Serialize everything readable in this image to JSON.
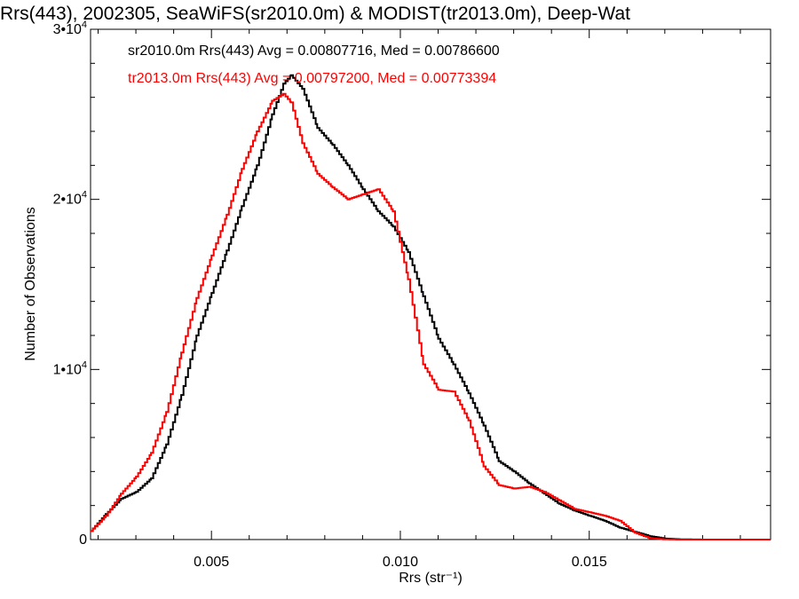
{
  "chart_data": {
    "type": "line",
    "title": "Rrs(443), 2002305, SeaWiFS(sr2010.0m) & MODIST(tr2013.0m), Deep-Wat",
    "xlabel": "Rrs (str⁻¹)",
    "ylabel": "Number of Observations",
    "xlim": [
      0.0018,
      0.0198
    ],
    "ylim": [
      0,
      30000
    ],
    "x_ticks": [
      0.005,
      0.01,
      0.015
    ],
    "x_tick_labels": [
      "0.005",
      "0.010",
      "0.015"
    ],
    "y_ticks": [
      0,
      10000,
      20000,
      30000
    ],
    "y_tick_labels": [
      {
        "mantissa": "0",
        "exp": ""
      },
      {
        "mantissa": "1•10",
        "exp": "4"
      },
      {
        "mantissa": "2•10",
        "exp": "4"
      },
      {
        "mantissa": "3•10",
        "exp": "4"
      }
    ],
    "grid": false,
    "series": [
      {
        "name": "sr2010.0m",
        "color": "#000000",
        "annotation": "sr2010.0m Rrs(443) Avg = 0.00807716, Med = 0.00786600",
        "x": [
          0.0018,
          0.0022,
          0.0026,
          0.003,
          0.0034,
          0.0038,
          0.0042,
          0.0046,
          0.005,
          0.0054,
          0.0058,
          0.0062,
          0.0066,
          0.0069,
          0.0071,
          0.0074,
          0.0078,
          0.0082,
          0.0086,
          0.009,
          0.0094,
          0.0098,
          0.0102,
          0.0106,
          0.011,
          0.0114,
          0.0118,
          0.0122,
          0.0126,
          0.013,
          0.0134,
          0.0138,
          0.0142,
          0.0146,
          0.015,
          0.0154,
          0.0158,
          0.0162,
          0.0166,
          0.017,
          0.0174,
          0.018,
          0.019,
          0.0198
        ],
        "y": [
          500,
          1500,
          2400,
          2800,
          3600,
          5600,
          8500,
          12000,
          14500,
          17000,
          19600,
          22000,
          25000,
          26800,
          27300,
          26500,
          24200,
          23200,
          22000,
          20600,
          19300,
          18400,
          16900,
          14300,
          11800,
          10300,
          8600,
          6700,
          4600,
          4000,
          3300,
          2700,
          2100,
          1700,
          1400,
          1100,
          700,
          450,
          200,
          60,
          15,
          0,
          0,
          0
        ]
      },
      {
        "name": "tr2013.0m",
        "color": "#ff0000",
        "annotation": "tr2013.0m Rrs(443) Avg = 0.00797200, Med = 0.00773394",
        "x": [
          0.0018,
          0.0022,
          0.0026,
          0.003,
          0.0034,
          0.0038,
          0.0042,
          0.0046,
          0.005,
          0.0054,
          0.0058,
          0.0062,
          0.0066,
          0.0069,
          0.0071,
          0.0074,
          0.0078,
          0.0082,
          0.0086,
          0.009,
          0.0094,
          0.0098,
          0.0102,
          0.0106,
          0.011,
          0.0114,
          0.0118,
          0.0122,
          0.0126,
          0.013,
          0.0134,
          0.0138,
          0.0142,
          0.0146,
          0.015,
          0.0154,
          0.0158,
          0.0162,
          0.0166,
          0.017,
          0.0174,
          0.018,
          0.019,
          0.0198
        ],
        "y": [
          500,
          1400,
          2700,
          3700,
          5100,
          7500,
          11000,
          14200,
          16700,
          19100,
          21800,
          24000,
          25800,
          26200,
          25700,
          23300,
          21500,
          20700,
          20000,
          20300,
          20600,
          19300,
          15300,
          10300,
          8800,
          8700,
          7000,
          4300,
          3200,
          3000,
          3100,
          2800,
          2300,
          1800,
          1600,
          1400,
          1100,
          400,
          80,
          10,
          0,
          0,
          0,
          0
        ]
      }
    ]
  }
}
